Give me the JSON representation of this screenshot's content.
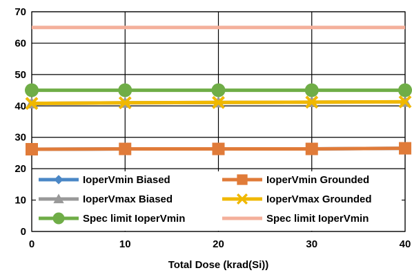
{
  "chart_data": {
    "type": "line",
    "title": "",
    "xlabel": "Total Dose (krad(Si))",
    "ylabel": "",
    "x": [
      0,
      10,
      20,
      30,
      40
    ],
    "xlim": [
      0,
      40
    ],
    "ylim": [
      0,
      70
    ],
    "x_ticks": [
      "0",
      "10",
      "20",
      "30",
      "40"
    ],
    "y_ticks": [
      "0",
      "10",
      "20",
      "30",
      "40",
      "50",
      "60",
      "70"
    ],
    "grid": true,
    "legend_position": "bottom-inside",
    "series": [
      {
        "name": "IoperVmin Biased",
        "values": [
          26.2,
          26.3,
          26.3,
          26.3,
          26.5
        ],
        "color": "#4a87c6",
        "marker": "diamond"
      },
      {
        "name": "IoperVmin Grounded",
        "values": [
          26.2,
          26.3,
          26.3,
          26.3,
          26.5
        ],
        "color": "#e07b39",
        "marker": "square"
      },
      {
        "name": "IoperVmax Biased",
        "values": [
          40.8,
          41.0,
          41.1,
          41.2,
          41.3
        ],
        "color": "#999999",
        "marker": "triangle"
      },
      {
        "name": "IoperVmax Grounded",
        "values": [
          40.8,
          41.0,
          41.1,
          41.2,
          41.3
        ],
        "color": "#f0b800",
        "marker": "x"
      },
      {
        "name": "Spec limit IoperVmin",
        "values": [
          45,
          45,
          45,
          45,
          45
        ],
        "color": "#6fad47",
        "marker": "circle"
      },
      {
        "name": "Spec limit IoperVmin",
        "values": [
          65,
          65,
          65,
          65,
          65
        ],
        "color": "#f4b09b",
        "marker": "none"
      }
    ]
  }
}
